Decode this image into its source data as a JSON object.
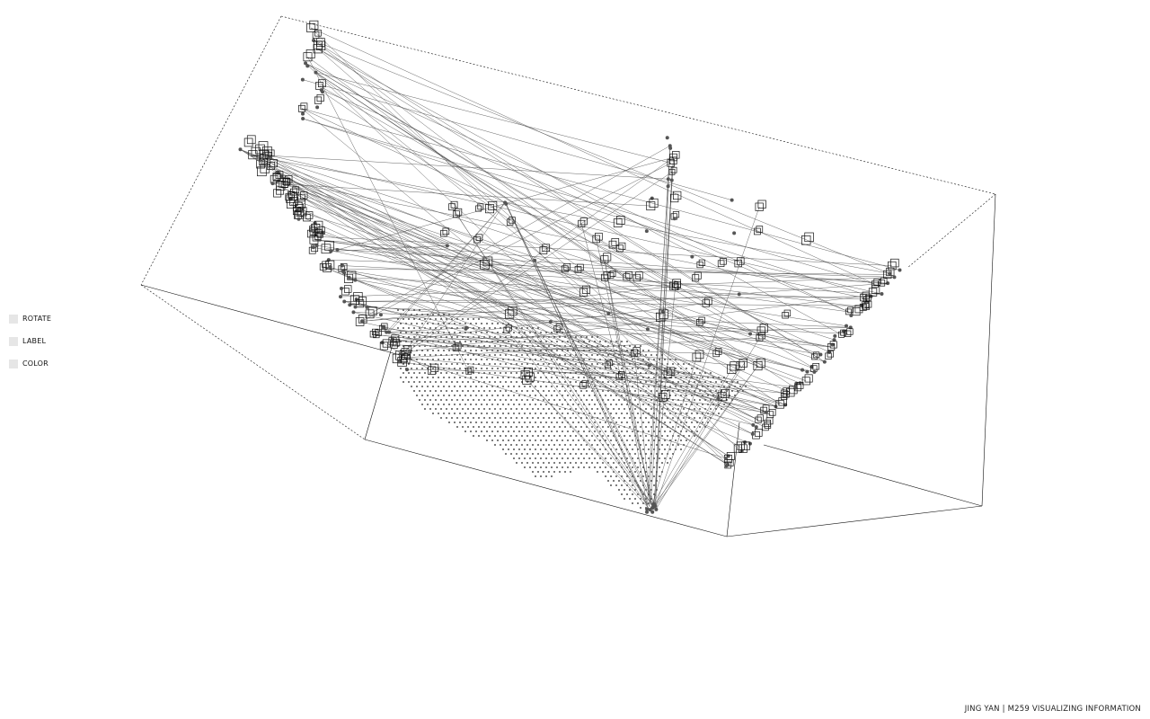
{
  "controls": [
    {
      "label": "ROTATE"
    },
    {
      "label": "LABEL"
    },
    {
      "label": "COLOR"
    }
  ],
  "credit": "JING YAN | M259 VISUALIZING INFORMATION",
  "colors": {
    "background": "#ffffff",
    "ink": "#111111",
    "link": "#555555",
    "control_box": "#e6e6e6"
  }
}
